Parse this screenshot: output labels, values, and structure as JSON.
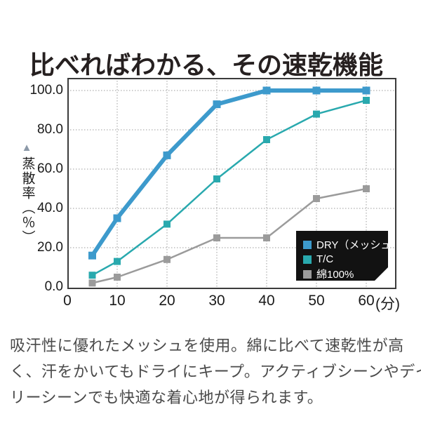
{
  "title": "比べればわかる、その速乾機能",
  "chart_data": {
    "type": "line",
    "x": [
      5,
      10,
      20,
      30,
      40,
      50,
      60
    ],
    "series": [
      {
        "name": "DRY（メッシュ）",
        "color": "#3D9ACC",
        "line_width": 6,
        "marker_size": 11,
        "values": [
          16,
          35,
          67,
          93,
          100,
          100,
          100
        ]
      },
      {
        "name": "T/C",
        "color": "#29A9AE",
        "line_width": 2.5,
        "marker_size": 10,
        "values": [
          6,
          13,
          32,
          55,
          75,
          88,
          95
        ]
      },
      {
        "name": "綿100%",
        "color": "#9B9B9B",
        "line_width": 2.5,
        "marker_size": 10,
        "values": [
          2,
          5,
          14,
          25,
          25,
          45,
          50
        ]
      }
    ],
    "ylabel": "蒸散率（％）",
    "ylabel_marker": "▲",
    "xlabel": "",
    "xunit": "(分)",
    "yticks": [
      "0.0",
      "20.0",
      "40.0",
      "60.0",
      "80.0",
      "100.0"
    ],
    "ytick_values": [
      0,
      20,
      40,
      60,
      80,
      100
    ],
    "xticks": [
      "0",
      "10",
      "20",
      "30",
      "40",
      "50",
      "60"
    ],
    "xtick_values": [
      0,
      10,
      20,
      30,
      40,
      50,
      60
    ],
    "ylim": [
      0,
      107
    ],
    "xlim": [
      0,
      66
    ],
    "grid": "dotted",
    "grid_color": "#9c9c9c",
    "frame_color": "#3b3b3b",
    "legend_position": "bottom-right-inside",
    "legend_bg": "#121212",
    "legend_text_color": "#ffffff"
  },
  "description": {
    "lines": [
      "吸汗性に優れたメッシュを使用。綿に比べて速乾性が高",
      "く、汗をかいてもドライにキープ。アクティブシーンやデイ",
      "リーシーンでも快適な着心地が得られます。"
    ]
  }
}
